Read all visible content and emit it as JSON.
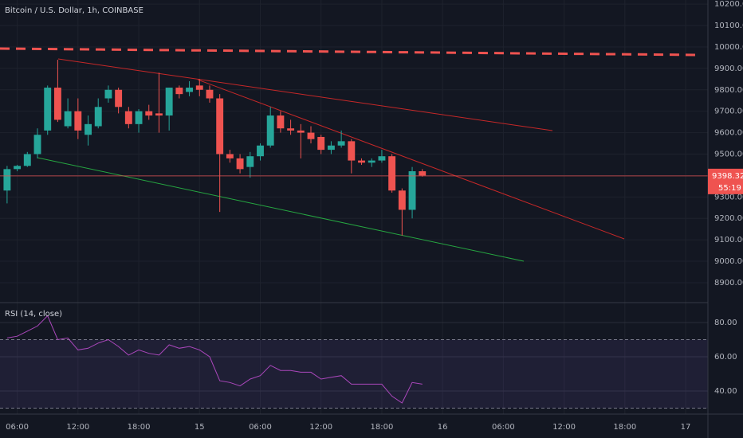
{
  "chart_data": [
    {
      "type": "candlestick",
      "title": "Bitcoin / U.S. Dollar, 1h, COINBASE",
      "up_color": "#26a69a",
      "down_color": "#ef5350",
      "grid": true,
      "x": [
        5,
        6,
        7,
        8,
        9,
        10,
        11,
        12,
        13,
        14,
        15,
        16,
        17,
        18,
        19,
        20,
        21,
        22,
        23,
        24,
        25,
        26,
        27,
        28,
        29,
        30,
        31,
        32,
        33,
        34,
        35,
        36,
        37,
        38,
        39,
        40,
        41,
        42,
        43,
        44,
        45,
        46
      ],
      "open": [
        9330,
        9430,
        9445,
        9500,
        9610,
        9810,
        9630,
        9700,
        9590,
        9630,
        9760,
        9800,
        9700,
        9640,
        9700,
        9690,
        9680,
        9810,
        9790,
        9820,
        9800,
        9760,
        9500,
        9480,
        9440,
        9490,
        9540,
        9680,
        9620,
        9610,
        9600,
        9580,
        9520,
        9540,
        9560,
        9470,
        9460,
        9470,
        9490,
        9330,
        9240,
        9420
      ],
      "high": [
        9445,
        9450,
        9510,
        9620,
        9820,
        9940,
        9760,
        9760,
        9680,
        9760,
        9820,
        9810,
        9720,
        9710,
        9730,
        9880,
        9810,
        9820,
        9840,
        9850,
        9820,
        9780,
        9520,
        9500,
        9510,
        9550,
        9720,
        9700,
        9660,
        9640,
        9630,
        9590,
        9560,
        9610,
        9570,
        9480,
        9480,
        9520,
        9500,
        9340,
        9440,
        9430
      ],
      "low": [
        9270,
        9420,
        9440,
        9480,
        9590,
        9650,
        9620,
        9570,
        9540,
        9620,
        9740,
        9690,
        9620,
        9600,
        9660,
        9600,
        9610,
        9760,
        9770,
        9770,
        9740,
        9230,
        9460,
        9410,
        9390,
        9470,
        9530,
        9600,
        9590,
        9480,
        9550,
        9500,
        9500,
        9530,
        9410,
        9450,
        9440,
        9460,
        9320,
        9120,
        9200,
        9395
      ],
      "close": [
        9430,
        9445,
        9500,
        9590,
        9810,
        9660,
        9700,
        9610,
        9640,
        9720,
        9800,
        9720,
        9640,
        9700,
        9680,
        9680,
        9810,
        9780,
        9810,
        9800,
        9760,
        9500,
        9480,
        9430,
        9490,
        9540,
        9680,
        9620,
        9610,
        9600,
        9570,
        9520,
        9540,
        9560,
        9470,
        9460,
        9470,
        9490,
        9330,
        9240,
        9420,
        9400
      ],
      "xlim": [
        4.3,
        74.2
      ],
      "ylim": [
        8807,
        10219
      ],
      "xticks": [
        {
          "value": 6,
          "label": "06:00"
        },
        {
          "value": 12,
          "label": "12:00"
        },
        {
          "value": 18,
          "label": "18:00"
        },
        {
          "value": 24,
          "label": "15"
        },
        {
          "value": 30,
          "label": "06:00"
        },
        {
          "value": 36,
          "label": "12:00"
        },
        {
          "value": 42,
          "label": "18:00"
        },
        {
          "value": 48,
          "label": "16"
        },
        {
          "value": 54,
          "label": "06:00"
        },
        {
          "value": 60,
          "label": "12:00"
        },
        {
          "value": 66,
          "label": "18:00"
        },
        {
          "value": 72,
          "label": "17"
        }
      ],
      "yticks": [
        {
          "value": 8900,
          "label": "8900.00"
        },
        {
          "value": 9000,
          "label": "9000.00"
        },
        {
          "value": 9100,
          "label": "9100.00"
        },
        {
          "value": 9200,
          "label": "9200.00"
        },
        {
          "value": 9300,
          "label": "9300.00"
        },
        {
          "value": 9400,
          "label": "9400.00"
        },
        {
          "value": 9500,
          "label": "9500.00"
        },
        {
          "value": 9600,
          "label": "9600.00"
        },
        {
          "value": 9700,
          "label": "9700.00"
        },
        {
          "value": 9800,
          "label": "9800.00"
        },
        {
          "value": 9900,
          "label": "9900.00"
        },
        {
          "value": 10000,
          "label": "10000.00"
        },
        {
          "value": 10100,
          "label": "10100.00"
        },
        {
          "value": 10200,
          "label": "10200.00"
        }
      ],
      "last_price": 9398.32,
      "countdown": "55:19"
    },
    {
      "type": "line",
      "title": "RSI (14, close)",
      "color": "#ab47bc",
      "x": [
        5,
        6,
        7,
        8,
        9,
        10,
        11,
        12,
        13,
        14,
        15,
        16,
        17,
        18,
        19,
        20,
        21,
        22,
        23,
        24,
        25,
        26,
        27,
        28,
        29,
        30,
        31,
        32,
        33,
        34,
        35,
        36,
        37,
        38,
        39,
        40,
        41,
        42,
        43,
        44,
        45,
        46
      ],
      "values": [
        71,
        72,
        75,
        78,
        84,
        70,
        71,
        64,
        65,
        68,
        70,
        66,
        61,
        64,
        62,
        61,
        67,
        65,
        66,
        64,
        60,
        46,
        45,
        43,
        47,
        49,
        55,
        52,
        52,
        51,
        51,
        47,
        48,
        49,
        44,
        44,
        44,
        44,
        37,
        33,
        45,
        44
      ],
      "xlim": [
        4.3,
        74.2
      ],
      "ylim": [
        26.5,
        91.2
      ],
      "bands": [
        30,
        70
      ],
      "yticks": [
        {
          "value": 40,
          "label": "40.00"
        },
        {
          "value": 60,
          "label": "60.00"
        },
        {
          "value": 80,
          "label": "80.00"
        }
      ]
    }
  ]
}
